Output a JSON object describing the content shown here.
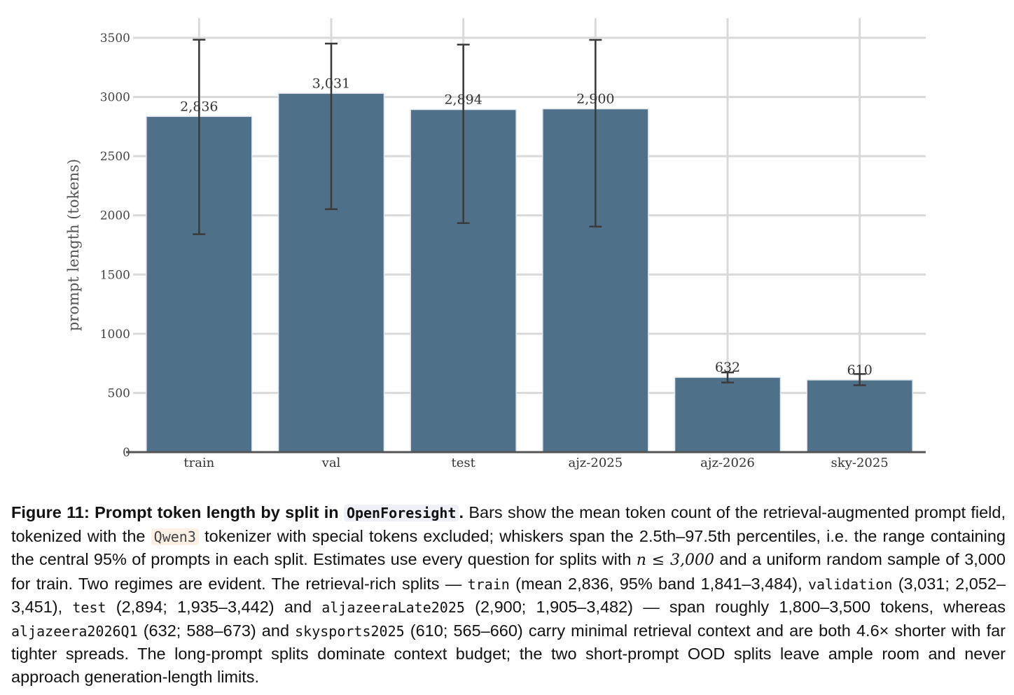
{
  "chart_data": {
    "type": "bar",
    "categories": [
      "train",
      "val",
      "test",
      "ajz-2025",
      "ajz-2026",
      "sky-2025"
    ],
    "values": [
      2836,
      3031,
      2894,
      2900,
      632,
      610
    ],
    "data_labels": [
      "2,836",
      "3,031",
      "2,894",
      "2,900",
      "632",
      "610"
    ],
    "error_low": [
      1841,
      2052,
      1935,
      1905,
      588,
      565
    ],
    "error_high": [
      3484,
      3451,
      3442,
      3482,
      673,
      660
    ],
    "ylabel": "prompt length (tokens)",
    "xlabel": "",
    "ylim": [
      0,
      3500
    ],
    "yticks": [
      0,
      500,
      1000,
      1500,
      2000,
      2500,
      3000,
      3500
    ],
    "grid": true,
    "bar_color": "#4e7089",
    "whisker_color": "#3a3a3a"
  },
  "caption": {
    "label": "Figure 11: Prompt token length by split in",
    "dataset_name": "OpenForesight",
    "label_end": ".",
    "s1": "Bars show the mean token count of the retrieval-augmented prompt field, tokenized with the",
    "tokenizer": "Qwen3",
    "s2": "tokenizer with special tokens excluded; whiskers span the 2.5th–97.5th percentiles, i.e. the range containing the central 95% of prompts in each split. Estimates use every question for splits with",
    "math": "n ≤ 3,000",
    "s3": "and a uniform random sample of 3,000 for train. Two regimes are evident. The retrieval-rich splits —",
    "split_train": "train",
    "s4": "(mean 2,836, 95% band 1,841–3,484),",
    "split_val": "validation",
    "s5": "(3,031; 2,052–3,451),",
    "split_test": "test",
    "s6": "(2,894; 1,935–3,442) and",
    "split_ajz2025": "aljazeeraLate2025",
    "s7": "(2,900; 1,905–3,482) — span roughly 1,800–3,500 tokens, whereas",
    "split_ajz2026": "aljazeera2026Q1",
    "s8": "(632; 588–673) and",
    "split_sky": "skysports2025",
    "s9": "(610; 565–660) carry minimal retrieval context and are both 4.6× shorter with far tighter spreads. The long-prompt splits dominate context budget; the two short-prompt OOD splits leave ample room and never approach generation-length limits."
  }
}
